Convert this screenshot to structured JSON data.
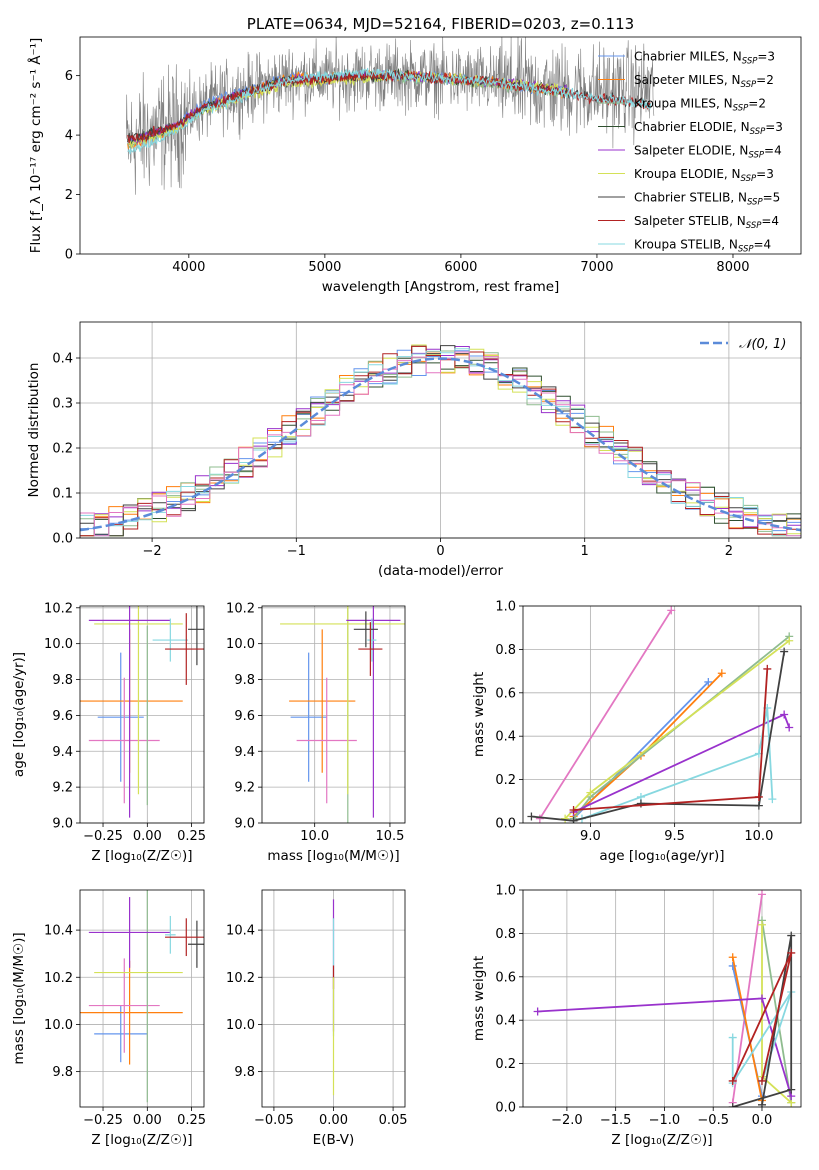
{
  "chart_data": [
    {
      "type": "line",
      "title": "PLATE=0634, MJD=52164, FIBERID=0203, z=0.113",
      "xlabel": "wavelength [Angstrom, rest frame]",
      "ylabel": "Flux [f_λ 10⁻¹⁷ erg cm⁻² s⁻¹ Å⁻¹]",
      "xlim": [
        3200,
        8500
      ],
      "ylim": [
        0,
        7.3
      ],
      "xticks": [
        4000,
        5000,
        6000,
        7000,
        8000
      ],
      "yticks": [
        0,
        2,
        4,
        6
      ],
      "data_color": "#808080",
      "legend_placement": "upper right",
      "series": [
        {
          "name": "Chabrier MILES, N_SSP=3",
          "color": "#6495ed",
          "x": [
            3550,
            3650,
            3750,
            3900,
            4000,
            4200,
            4500,
            4800,
            5000,
            5300,
            5600,
            5900,
            6200,
            6500,
            6800
          ],
          "y": [
            3.7,
            3.9,
            4.1,
            4.3,
            4.7,
            5.2,
            5.6,
            6.0,
            5.9,
            6.0,
            6.0,
            5.9,
            5.8,
            5.6,
            5.5
          ]
        },
        {
          "name": "Salpeter MILES, N_SSP=2",
          "color": "#ff7f0e",
          "x": [
            3550,
            3650,
            3750,
            3900,
            4000,
            4200,
            4500,
            4800,
            5000,
            5300,
            5600,
            5900,
            6200,
            6500,
            6800
          ],
          "y": [
            3.6,
            3.8,
            4.0,
            4.2,
            4.6,
            5.1,
            5.5,
            6.0,
            5.9,
            6.0,
            6.0,
            5.9,
            5.8,
            5.6,
            5.4
          ]
        },
        {
          "name": "Kroupa MILES, N_SSP=2",
          "color": "#8fbc8f",
          "x": [
            3550,
            3650,
            3750,
            3900,
            4000,
            4200,
            4500,
            4800,
            5000,
            5300,
            5600,
            5900,
            6200,
            6500,
            6800
          ],
          "y": [
            3.7,
            3.8,
            4.0,
            4.2,
            4.6,
            5.1,
            5.5,
            5.9,
            5.9,
            6.0,
            5.9,
            5.8,
            5.7,
            5.6,
            5.4
          ]
        },
        {
          "name": "Chabrier ELODIE, N_SSP=3",
          "color": "#2f4f2f",
          "x": [
            3550,
            3700,
            3900,
            4100,
            4400,
            4700,
            5000,
            5300,
            5600,
            5900,
            6200,
            6500,
            6800
          ],
          "y": [
            3.8,
            4.0,
            4.3,
            4.9,
            5.4,
            5.8,
            5.9,
            6.0,
            6.0,
            5.9,
            5.8,
            5.7,
            5.5
          ]
        },
        {
          "name": "Salpeter ELODIE, N_SSP=4",
          "color": "#9932cc",
          "x": [
            3550,
            3700,
            3900,
            4100,
            4400,
            4700,
            5000,
            5300,
            5600,
            5900,
            6200,
            6500,
            6800
          ],
          "y": [
            3.8,
            4.0,
            4.3,
            4.9,
            5.4,
            5.8,
            5.9,
            6.0,
            6.0,
            5.9,
            5.8,
            5.7,
            5.5
          ]
        },
        {
          "name": "Kroupa ELODIE, N_SSP=3",
          "color": "#d4e157",
          "x": [
            3550,
            3700,
            3900,
            4100,
            4400,
            4700,
            5000,
            5300,
            5600,
            5900,
            6200,
            6500,
            6800
          ],
          "y": [
            3.7,
            3.9,
            4.2,
            4.8,
            5.3,
            5.7,
            5.8,
            5.9,
            6.0,
            5.9,
            5.8,
            5.7,
            5.5
          ]
        },
        {
          "name": "Chabrier STELIB, N_SSP=5",
          "color": "#404040",
          "x": [
            3550,
            3700,
            3900,
            4100,
            4400,
            4700,
            5000,
            5300,
            5600,
            5900,
            6200,
            6500,
            6800,
            7100,
            7400
          ],
          "y": [
            3.9,
            4.0,
            4.3,
            4.9,
            5.4,
            5.8,
            5.9,
            6.0,
            6.0,
            5.9,
            5.8,
            5.6,
            5.4,
            5.2,
            5.0
          ]
        },
        {
          "name": "Salpeter STELIB, N_SSP=4",
          "color": "#b22222",
          "x": [
            3550,
            3700,
            3900,
            4100,
            4400,
            4700,
            5000,
            5300,
            5600,
            5900,
            6200,
            6500,
            6800,
            7100,
            7400
          ],
          "y": [
            3.9,
            4.0,
            4.3,
            4.9,
            5.4,
            5.8,
            5.9,
            6.0,
            6.0,
            5.9,
            5.8,
            5.6,
            5.4,
            5.2,
            5.0
          ]
        },
        {
          "name": "Kroupa STELIB, N_SSP=4",
          "color": "#87d8e0",
          "x": [
            3550,
            3700,
            3900,
            4100,
            4400,
            4700,
            5000,
            5300,
            5600,
            5900,
            6200,
            6500,
            6800,
            7100,
            7400
          ],
          "y": [
            3.5,
            3.7,
            4.1,
            4.8,
            5.3,
            5.8,
            6.0,
            6.1,
            6.0,
            5.9,
            5.8,
            5.6,
            5.4,
            5.2,
            5.0
          ]
        }
      ]
    },
    {
      "type": "line",
      "xlabel": "(data-model)/error",
      "ylabel": "Normed distribution",
      "xlim": [
        -2.5,
        2.5
      ],
      "ylim": [
        0,
        0.48
      ],
      "xticks": [
        -2,
        -1,
        0,
        1,
        2
      ],
      "yticks": [
        0.0,
        0.1,
        0.2,
        0.3,
        0.4
      ],
      "grid": true,
      "legend_placement": "upper right",
      "reference_curve": {
        "name": "𝒩(0, 1)",
        "color": "#5b8bd9",
        "style": "dashed"
      },
      "histogram_bins": {
        "start": -2.5,
        "width": 0.1
      },
      "histogram_colors": [
        "#6495ed",
        "#ff7f0e",
        "#8fbc8f",
        "#2f4f2f",
        "#9932cc",
        "#d4e157",
        "#404040",
        "#b22222",
        "#87d8e0",
        "#e377c2"
      ]
    },
    {
      "type": "scatter",
      "xlabel": "Z [log₁₀(Z/Z☉)]",
      "ylabel": "age  [log₁₀(age/yr)]",
      "xlim": [
        -0.38,
        0.32
      ],
      "ylim": [
        9.0,
        10.21
      ],
      "xticks": [
        -0.25,
        0.0,
        0.25
      ],
      "yticks": [
        9.0,
        9.2,
        9.4,
        9.6,
        9.8,
        10.0,
        10.2
      ],
      "grid": true,
      "points": [
        {
          "color": "#6495ed",
          "x": -0.15,
          "y": 9.59,
          "xerr": 0.13,
          "yerr": 0.36
        },
        {
          "color": "#ff7f0e",
          "x": -0.1,
          "y": 9.68,
          "xerr": 0.3,
          "yerr": 0.4
        },
        {
          "color": "#e377c2",
          "x": -0.13,
          "y": 9.46,
          "xerr": 0.2,
          "yerr": 0.35
        },
        {
          "color": "#8fbc8f",
          "x": 0.0,
          "y": 9.6,
          "xerr": 0.0,
          "yerr": 0.5
        },
        {
          "color": "#d4e157",
          "x": -0.05,
          "y": 10.11,
          "xerr": 0.25,
          "yerr": 0.95
        },
        {
          "color": "#9932cc",
          "x": -0.1,
          "y": 10.13,
          "xerr": 0.23,
          "yerr": 1.1
        },
        {
          "color": "#87d8e0",
          "x": 0.13,
          "y": 10.02,
          "xerr": 0.1,
          "yerr": 0.12
        },
        {
          "color": "#404040",
          "x": 0.28,
          "y": 10.08,
          "xerr": 0.05,
          "yerr": 0.2
        },
        {
          "color": "#b22222",
          "x": 0.22,
          "y": 9.97,
          "xerr": 0.12,
          "yerr": 0.2
        }
      ]
    },
    {
      "type": "scatter",
      "xlabel": "mass [log₁₀(M/M☉)]",
      "xlim": [
        9.65,
        10.6
      ],
      "ylim": [
        9.0,
        10.21
      ],
      "xticks": [
        10.0,
        10.5
      ],
      "yticks": [
        9.0,
        9.2,
        9.4,
        9.6,
        9.8,
        10.0,
        10.2
      ],
      "grid": true,
      "points": [
        {
          "color": "#6495ed",
          "x": 9.96,
          "y": 9.59,
          "xerr": 0.12,
          "yerr": 0.36
        },
        {
          "color": "#ff7f0e",
          "x": 10.05,
          "y": 9.68,
          "xerr": 0.22,
          "yerr": 0.4
        },
        {
          "color": "#e377c2",
          "x": 10.08,
          "y": 9.46,
          "xerr": 0.2,
          "yerr": 0.35
        },
        {
          "color": "#8fbc8f",
          "x": 10.22,
          "y": 9.6,
          "xerr": 0.0,
          "yerr": 0.6
        },
        {
          "color": "#d4e157",
          "x": 10.22,
          "y": 10.11,
          "xerr": 0.45,
          "yerr": 0.95
        },
        {
          "color": "#9932cc",
          "x": 10.39,
          "y": 10.13,
          "xerr": 0.18,
          "yerr": 1.1
        },
        {
          "color": "#87d8e0",
          "x": 10.38,
          "y": 10.02,
          "xerr": 0.03,
          "yerr": 0.12
        },
        {
          "color": "#404040",
          "x": 10.34,
          "y": 10.08,
          "xerr": 0.08,
          "yerr": 0.1
        },
        {
          "color": "#b22222",
          "x": 10.37,
          "y": 9.97,
          "xerr": 0.08,
          "yerr": 0.15
        }
      ]
    },
    {
      "type": "line",
      "xlabel": "age  [log₁₀(age/yr)]",
      "ylabel": "mass weight",
      "xlim": [
        8.6,
        10.25
      ],
      "ylim": [
        0,
        1.0
      ],
      "xticks": [
        9.0,
        9.5,
        10.0
      ],
      "yticks": [
        0.0,
        0.2,
        0.4,
        0.6,
        0.8,
        1.0
      ],
      "grid": true,
      "series": [
        {
          "color": "#e377c2",
          "x": [
            8.7,
            9.48
          ],
          "y": [
            0.02,
            0.98
          ]
        },
        {
          "color": "#6495ed",
          "x": [
            8.9,
            9.7
          ],
          "y": [
            0.02,
            0.65
          ]
        },
        {
          "color": "#ff7f0e",
          "x": [
            8.9,
            9.3,
            9.78
          ],
          "y": [
            0.03,
            0.31,
            0.69
          ]
        },
        {
          "color": "#8fbc8f",
          "x": [
            8.9,
            9.0,
            10.18
          ],
          "y": [
            0.02,
            0.12,
            0.86
          ]
        },
        {
          "color": "#d4e157",
          "x": [
            8.85,
            9.0,
            10.18
          ],
          "y": [
            0.02,
            0.14,
            0.84
          ]
        },
        {
          "color": "#9932cc",
          "x": [
            8.9,
            10.15,
            10.18
          ],
          "y": [
            0.05,
            0.5,
            0.44
          ]
        },
        {
          "color": "#87d8e0",
          "x": [
            8.95,
            9.3,
            10.0,
            10.05,
            10.08
          ],
          "y": [
            0.02,
            0.12,
            0.32,
            0.53,
            0.11
          ]
        },
        {
          "color": "#404040",
          "x": [
            8.65,
            8.9,
            9.3,
            10.0,
            10.15
          ],
          "y": [
            0.03,
            0.01,
            0.09,
            0.08,
            0.79
          ]
        },
        {
          "color": "#b22222",
          "x": [
            8.9,
            10.0,
            10.05
          ],
          "y": [
            0.06,
            0.12,
            0.71
          ]
        }
      ]
    },
    {
      "type": "scatter",
      "xlabel": "Z [log₁₀(Z/Z☉)]",
      "ylabel": "mass [log₁₀(M/M☉)]",
      "xlim": [
        -0.38,
        0.32
      ],
      "ylim": [
        9.65,
        10.57
      ],
      "xticks": [
        -0.25,
        0.0,
        0.25
      ],
      "yticks": [
        9.8,
        10.0,
        10.2,
        10.4
      ],
      "grid": true,
      "points": [
        {
          "color": "#6495ed",
          "x": -0.15,
          "y": 9.96,
          "xerr": 0.15,
          "yerr": 0.12
        },
        {
          "color": "#ff7f0e",
          "x": -0.1,
          "y": 10.05,
          "xerr": 0.3,
          "yerr": 0.22
        },
        {
          "color": "#e377c2",
          "x": -0.13,
          "y": 10.08,
          "xerr": 0.2,
          "yerr": 0.2
        },
        {
          "color": "#8fbc8f",
          "x": 0.0,
          "y": 10.22,
          "xerr": 0.0,
          "yerr": 0.55
        },
        {
          "color": "#d4e157",
          "x": -0.05,
          "y": 10.22,
          "xerr": 0.25,
          "yerr": 0.0
        },
        {
          "color": "#9932cc",
          "x": -0.1,
          "y": 10.39,
          "xerr": 0.23,
          "yerr": 0.15
        },
        {
          "color": "#87d8e0",
          "x": 0.13,
          "y": 10.38,
          "xerr": 0.03,
          "yerr": 0.08
        },
        {
          "color": "#404040",
          "x": 0.28,
          "y": 10.34,
          "xerr": 0.05,
          "yerr": 0.1
        },
        {
          "color": "#b22222",
          "x": 0.22,
          "y": 10.37,
          "xerr": 0.12,
          "yerr": 0.08
        }
      ]
    },
    {
      "type": "scatter",
      "xlabel": "E(B-V)",
      "xlim": [
        -0.06,
        0.06
      ],
      "ylim": [
        9.65,
        10.57
      ],
      "xticks": [
        -0.05,
        0.0,
        0.05
      ],
      "yticks": [
        9.8,
        10.0,
        10.2,
        10.4
      ],
      "grid": true,
      "points": [
        {
          "color": "#9932cc",
          "x": 0.0,
          "y": 10.25,
          "yerr": 0.28
        },
        {
          "color": "#87d8e0",
          "x": 0.0,
          "y": 10.2,
          "yerr": 0.25
        },
        {
          "color": "#b22222",
          "x": 0.0,
          "y": 10.2,
          "yerr": 0.05
        },
        {
          "color": "#d4e157",
          "x": 0.0,
          "y": 9.95,
          "yerr": 0.25
        }
      ]
    },
    {
      "type": "line",
      "xlabel": "Z [log₁₀(Z/Z☉)]",
      "ylabel": "mass weight",
      "xlim": [
        -2.45,
        0.4
      ],
      "ylim": [
        0,
        1.0
      ],
      "xticks": [
        -2.0,
        -1.5,
        -1.0,
        -0.5,
        0.0
      ],
      "yticks": [
        0.0,
        0.2,
        0.4,
        0.6,
        0.8,
        1.0
      ],
      "grid": true,
      "series": [
        {
          "color": "#e377c2",
          "x": [
            -0.3,
            0.0
          ],
          "y": [
            0.02,
            0.98
          ]
        },
        {
          "color": "#6495ed",
          "x": [
            -0.3,
            0.0
          ],
          "y": [
            0.65,
            0.05
          ]
        },
        {
          "color": "#ff7f0e",
          "x": [
            -0.3,
            0.0
          ],
          "y": [
            0.69,
            0.03
          ]
        },
        {
          "color": "#8fbc8f",
          "x": [
            0.0,
            0.3
          ],
          "y": [
            0.86,
            0.02
          ]
        },
        {
          "color": "#d4e157",
          "x": [
            0.0,
            0.0,
            0.3
          ],
          "y": [
            0.84,
            0.14,
            0.02
          ]
        },
        {
          "color": "#9932cc",
          "x": [
            -2.3,
            0.0,
            0.3
          ],
          "y": [
            0.44,
            0.5,
            0.05
          ]
        },
        {
          "color": "#87d8e0",
          "x": [
            -0.3,
            -0.3,
            0.3,
            0.0
          ],
          "y": [
            0.32,
            0.11,
            0.53,
            0.12
          ]
        },
        {
          "color": "#404040",
          "x": [
            -0.3,
            0.3,
            0.3,
            0.0
          ],
          "y": [
            0.0,
            0.08,
            0.79,
            0.01
          ]
        },
        {
          "color": "#b22222",
          "x": [
            0.0,
            0.3,
            -0.3
          ],
          "y": [
            0.12,
            0.71,
            0.12
          ]
        }
      ]
    }
  ]
}
